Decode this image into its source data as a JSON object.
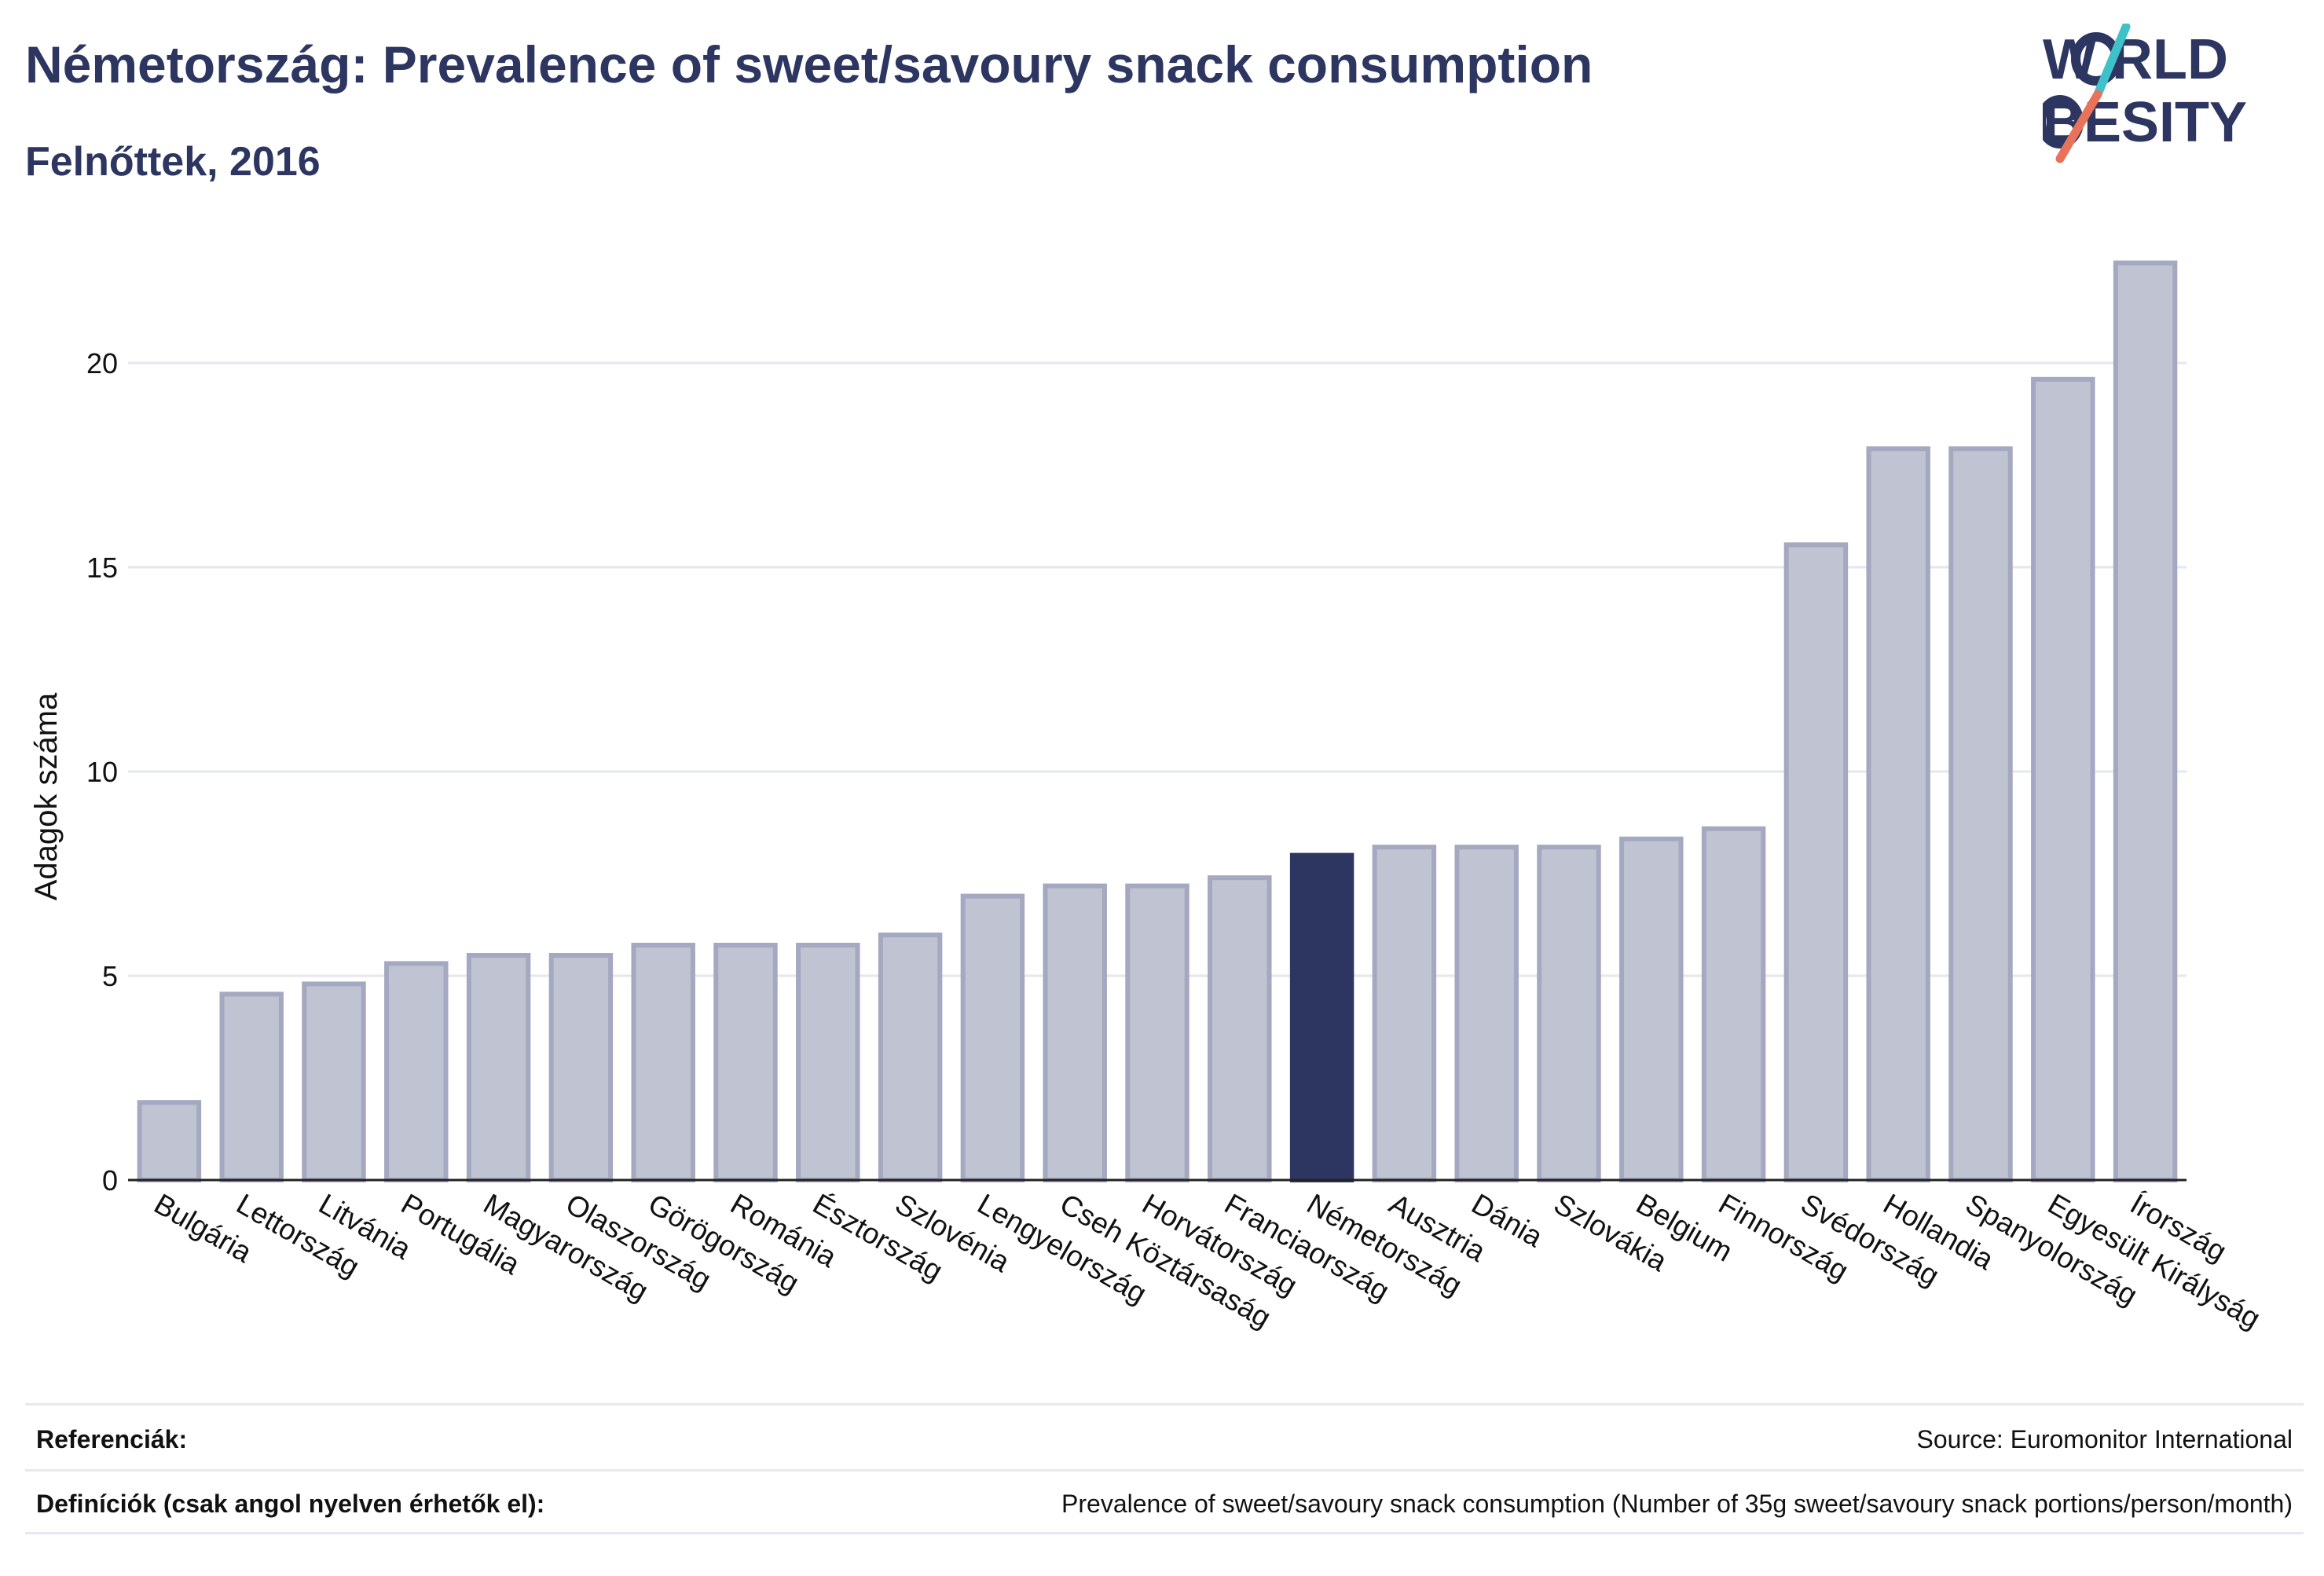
{
  "header": {
    "title": "Németország: Prevalence of sweet/savoury snack consumption",
    "subtitle": "Felnőttek, 2016"
  },
  "logo": {
    "line1": "W RLD",
    "line2": "BESITY",
    "text_color": "#2d3561",
    "slash_color_top": "#3ec1c9",
    "slash_color_bottom": "#e8735a"
  },
  "colors": {
    "bar": "#c0c3d2",
    "bar_stroke": "#a4a8c0",
    "highlight": "#2d3561",
    "grid": "#e6e7ee",
    "axis": "#222222"
  },
  "chart_data": {
    "type": "bar",
    "ylabel": "Adagok száma",
    "ylim": [
      0,
      23
    ],
    "yticks": [
      0,
      5,
      10,
      15,
      20
    ],
    "grid": true,
    "highlight": "Németország",
    "categories": [
      "Bulgária",
      "Lettország",
      "Litvánia",
      "Portugália",
      "Magyarország",
      "Olaszország",
      "Görögország",
      "Románia",
      "Észtország",
      "Szlovénia",
      "Lengyelország",
      "Cseh Köztársaság",
      "Horvátország",
      "Franciaország",
      "Németország",
      "Ausztria",
      "Dánia",
      "Szlovákia",
      "Belgium",
      "Finnország",
      "Svédország",
      "Hollandia",
      "Spanyolország",
      "Egyesült Királyság",
      "Írország"
    ],
    "values": [
      1.9,
      4.55,
      4.8,
      5.3,
      5.5,
      5.5,
      5.75,
      5.75,
      5.75,
      6.0,
      6.95,
      7.2,
      7.2,
      7.4,
      7.95,
      8.15,
      8.15,
      8.15,
      8.35,
      8.6,
      15.55,
      17.9,
      17.9,
      19.6,
      22.45
    ]
  },
  "footer": {
    "references_label": "Referenciák:",
    "references_value": "Source: Euromonitor International",
    "definitions_label": "Definíciók (csak angol nyelven érhetők el):",
    "definitions_value": "Prevalence of sweet/savoury snack consumption (Number of 35g sweet/savoury snack portions/person/month)"
  }
}
